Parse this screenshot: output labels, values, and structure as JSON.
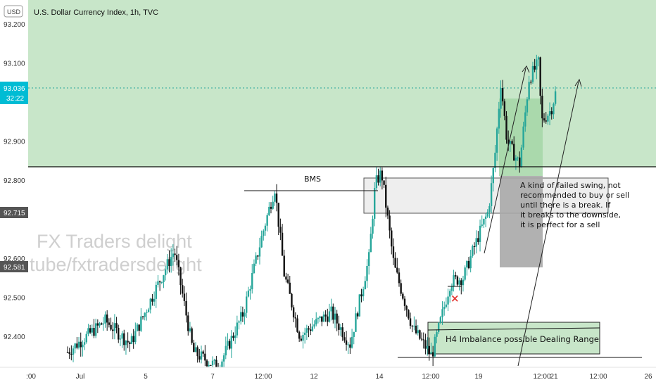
{
  "header": {
    "title": "U.S. Dollar Currency Index, 1h, TVC",
    "currency_badge": "USD"
  },
  "price_axis": {
    "ticks": [
      {
        "value": 93.2,
        "label": "93.200"
      },
      {
        "value": 93.1,
        "label": "93.100"
      },
      {
        "value": 92.9,
        "label": "92.900"
      },
      {
        "value": 92.8,
        "label": "92.800"
      },
      {
        "value": 92.6,
        "label": "92.600"
      },
      {
        "value": 92.5,
        "label": "92.500"
      },
      {
        "value": 92.4,
        "label": "92.400"
      }
    ],
    "current_price": {
      "value": 93.036,
      "label": "93.036",
      "countdown": "32:22",
      "color": "#00bcd4"
    },
    "marker_a": {
      "value": 92.715,
      "label": "92.715"
    },
    "marker_b": {
      "value": 92.581,
      "label": "92.581"
    }
  },
  "time_axis": {
    "ticks": [
      ":00",
      "Jul",
      "5",
      "7",
      "12:00",
      "12",
      "14",
      "12:00",
      "19",
      "12:00",
      "21",
      "12:00",
      "26"
    ]
  },
  "annotations": {
    "bms_label": "BMS",
    "note_text": "A kind of failed swing, not recommended to buy or sell until there is a break. If it breaks to the downside, it is perfect for a sell",
    "imbalance_label": "H4 Imbalance possible Dealing Range",
    "watermark_line1": "FX Traders delight",
    "watermark_line2": "tube/fxtradersdelight"
  },
  "colors": {
    "up": "#26a69a",
    "down": "#111111",
    "zone_green": "#c8e6c9",
    "zone_gray": "#eeeeee",
    "zone_dark": "#9e9e9e"
  },
  "chart_data": {
    "type": "candlestick",
    "title": "U.S. Dollar Currency Index, 1h, TVC",
    "ylim": [
      92.32,
      93.25
    ],
    "levels": {
      "bms_line": 92.775,
      "horizontal_line": 92.835,
      "current": 93.036
    },
    "series": [
      {
        "name": "close",
        "anchors": [
          [
            0.0,
            92.36
          ],
          [
            0.06,
            92.44
          ],
          [
            0.1,
            92.38
          ],
          [
            0.14,
            92.52
          ],
          [
            0.17,
            92.62
          ],
          [
            0.2,
            92.36
          ],
          [
            0.24,
            92.32
          ],
          [
            0.28,
            92.46
          ],
          [
            0.31,
            92.66
          ],
          [
            0.33,
            92.78
          ],
          [
            0.345,
            92.56
          ],
          [
            0.37,
            92.4
          ],
          [
            0.4,
            92.44
          ],
          [
            0.42,
            92.46
          ],
          [
            0.45,
            92.38
          ],
          [
            0.48,
            92.6
          ],
          [
            0.49,
            92.79
          ],
          [
            0.5,
            92.82
          ],
          [
            0.52,
            92.58
          ],
          [
            0.55,
            92.42
          ],
          [
            0.58,
            92.35
          ],
          [
            0.61,
            92.54
          ],
          [
            0.63,
            92.55
          ],
          [
            0.655,
            92.66
          ],
          [
            0.67,
            92.72
          ],
          [
            0.68,
            92.85
          ],
          [
            0.69,
            93.05
          ],
          [
            0.7,
            92.9
          ],
          [
            0.72,
            92.84
          ],
          [
            0.735,
            93.06
          ],
          [
            0.75,
            93.1
          ],
          [
            0.755,
            92.95
          ],
          [
            0.77,
            92.98
          ],
          [
            0.78,
            93.04
          ]
        ]
      }
    ]
  }
}
